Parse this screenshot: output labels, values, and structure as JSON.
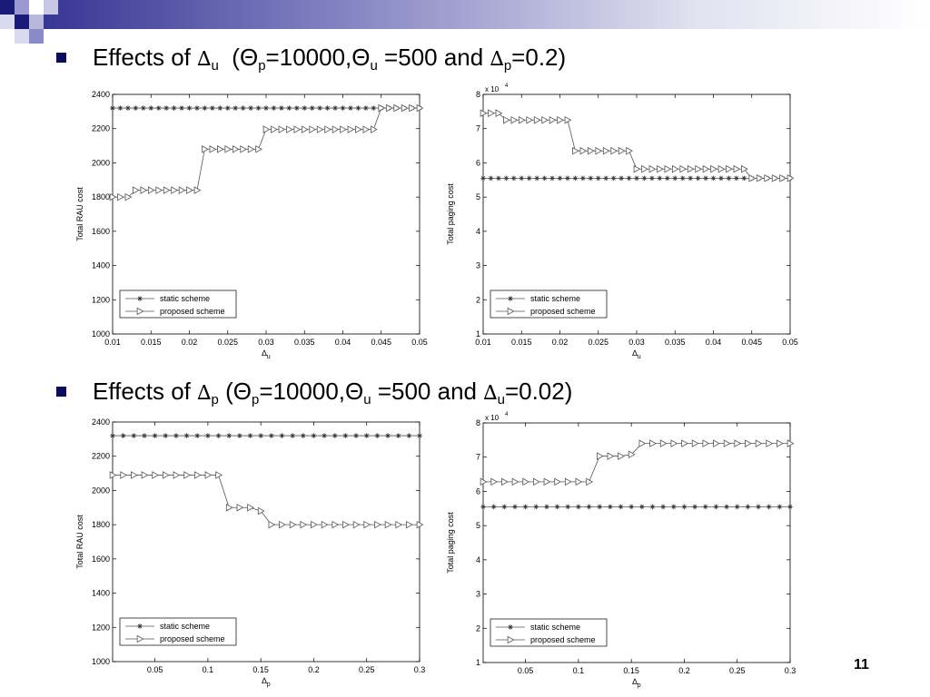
{
  "slide": {
    "heading1": {
      "prefix": "Effects of ",
      "symbol": "∆",
      "sub": "u",
      "rest_a": "  (Θ",
      "sub_p": "p",
      "rest_b": "=10000,Θ",
      "sub_u": "u",
      "rest_c": " =500 and ",
      "symbol2": "∆",
      "sub2": "p",
      "rest_d": "=0.2)"
    },
    "heading2": {
      "prefix": "Effects of ",
      "symbol": "∆",
      "sub": "p",
      "rest_a": " (Θ",
      "sub_p": "p",
      "rest_b": "=10000,Θ",
      "sub_u": "u",
      "rest_c": " =500 and ",
      "symbol2": "∆",
      "sub2": "u",
      "rest_d": "=0.02)"
    },
    "page_number": "11",
    "accent_color": "#0a0a60"
  },
  "chart_data": [
    {
      "type": "line",
      "ylabel": "Total RAU cost",
      "xlabel": "∆u",
      "xlim": [
        0.01,
        0.05
      ],
      "ylim": [
        1000,
        2400
      ],
      "xticks": [
        0.01,
        0.015,
        0.02,
        0.025,
        0.03,
        0.035,
        0.04,
        0.045,
        0.05
      ],
      "xtick_labels": [
        "0.01",
        "0.015",
        "0.02",
        "0.025",
        "0.03",
        "0.035",
        "0.04",
        "0.045",
        "0.05"
      ],
      "yticks": [
        1000,
        1200,
        1400,
        1600,
        1800,
        2000,
        2200,
        2400
      ],
      "ytick_labels": [
        "1000",
        "1200",
        "1400",
        "1600",
        "1800",
        "2000",
        "2200",
        "2400"
      ],
      "y_exponent_label": "",
      "legend": "bottom-left",
      "grid": false,
      "series": [
        {
          "name": "static scheme",
          "marker": "star",
          "x": [
            0.01,
            0.011,
            0.012,
            0.013,
            0.014,
            0.015,
            0.016,
            0.017,
            0.018,
            0.019,
            0.02,
            0.021,
            0.022,
            0.023,
            0.024,
            0.025,
            0.026,
            0.027,
            0.028,
            0.029,
            0.03,
            0.031,
            0.032,
            0.033,
            0.034,
            0.035,
            0.036,
            0.037,
            0.038,
            0.039,
            0.04,
            0.041,
            0.042,
            0.043,
            0.044,
            0.045,
            0.046,
            0.047,
            0.048,
            0.049,
            0.05
          ],
          "y": [
            2320,
            2320,
            2320,
            2320,
            2320,
            2320,
            2320,
            2320,
            2320,
            2320,
            2320,
            2320,
            2320,
            2320,
            2320,
            2320,
            2320,
            2320,
            2320,
            2320,
            2320,
            2320,
            2320,
            2320,
            2320,
            2320,
            2320,
            2320,
            2320,
            2320,
            2320,
            2320,
            2320,
            2320,
            2320,
            2320,
            2320,
            2320,
            2320,
            2320,
            2320
          ]
        },
        {
          "name": "proposed scheme",
          "marker": "triangle",
          "x": [
            0.01,
            0.011,
            0.012,
            0.013,
            0.014,
            0.015,
            0.016,
            0.017,
            0.018,
            0.019,
            0.02,
            0.021,
            0.022,
            0.023,
            0.024,
            0.025,
            0.026,
            0.027,
            0.028,
            0.029,
            0.03,
            0.031,
            0.032,
            0.033,
            0.034,
            0.035,
            0.036,
            0.037,
            0.038,
            0.039,
            0.04,
            0.041,
            0.042,
            0.043,
            0.044,
            0.045,
            0.046,
            0.047,
            0.048,
            0.049,
            0.05
          ],
          "y": [
            1800,
            1800,
            1800,
            1840,
            1840,
            1840,
            1840,
            1840,
            1840,
            1840,
            1840,
            1840,
            2080,
            2080,
            2080,
            2080,
            2080,
            2080,
            2080,
            2080,
            2195,
            2195,
            2195,
            2195,
            2195,
            2195,
            2195,
            2195,
            2195,
            2195,
            2195,
            2195,
            2195,
            2195,
            2195,
            2320,
            2320,
            2320,
            2320,
            2320,
            2320
          ]
        }
      ]
    },
    {
      "type": "line",
      "ylabel": "Total paging cost",
      "xlabel": "∆u",
      "xlim": [
        0.01,
        0.05
      ],
      "ylim": [
        1,
        8
      ],
      "xticks": [
        0.01,
        0.015,
        0.02,
        0.025,
        0.03,
        0.035,
        0.04,
        0.045,
        0.05
      ],
      "xtick_labels": [
        "0.01",
        "0.015",
        "0.02",
        "0.025",
        "0.03",
        "0.035",
        "0.04",
        "0.045",
        "0.05"
      ],
      "yticks": [
        1,
        2,
        3,
        4,
        5,
        6,
        7,
        8
      ],
      "ytick_labels": [
        "1",
        "2",
        "3",
        "4",
        "5",
        "6",
        "7",
        "8"
      ],
      "y_exponent_label": "x 10",
      "y_exponent_power": "4",
      "legend": "bottom-left",
      "grid": false,
      "series": [
        {
          "name": "static scheme",
          "marker": "star",
          "x": [
            0.01,
            0.011,
            0.012,
            0.013,
            0.014,
            0.015,
            0.016,
            0.017,
            0.018,
            0.019,
            0.02,
            0.021,
            0.022,
            0.023,
            0.024,
            0.025,
            0.026,
            0.027,
            0.028,
            0.029,
            0.03,
            0.031,
            0.032,
            0.033,
            0.034,
            0.035,
            0.036,
            0.037,
            0.038,
            0.039,
            0.04,
            0.041,
            0.042,
            0.043,
            0.044,
            0.045,
            0.046,
            0.047,
            0.048,
            0.049,
            0.05
          ],
          "y": [
            5.55,
            5.55,
            5.55,
            5.55,
            5.55,
            5.55,
            5.55,
            5.55,
            5.55,
            5.55,
            5.55,
            5.55,
            5.55,
            5.55,
            5.55,
            5.55,
            5.55,
            5.55,
            5.55,
            5.55,
            5.55,
            5.55,
            5.55,
            5.55,
            5.55,
            5.55,
            5.55,
            5.55,
            5.55,
            5.55,
            5.55,
            5.55,
            5.55,
            5.55,
            5.55,
            5.55,
            5.55,
            5.55,
            5.55,
            5.55,
            5.55
          ]
        },
        {
          "name": "proposed scheme",
          "marker": "triangle",
          "x": [
            0.01,
            0.011,
            0.012,
            0.013,
            0.014,
            0.015,
            0.016,
            0.017,
            0.018,
            0.019,
            0.02,
            0.021,
            0.022,
            0.023,
            0.024,
            0.025,
            0.026,
            0.027,
            0.028,
            0.029,
            0.03,
            0.031,
            0.032,
            0.033,
            0.034,
            0.035,
            0.036,
            0.037,
            0.038,
            0.039,
            0.04,
            0.041,
            0.042,
            0.043,
            0.044,
            0.045,
            0.046,
            0.047,
            0.048,
            0.049,
            0.05
          ],
          "y": [
            7.45,
            7.45,
            7.45,
            7.25,
            7.25,
            7.25,
            7.25,
            7.25,
            7.25,
            7.25,
            7.25,
            7.25,
            6.35,
            6.35,
            6.35,
            6.35,
            6.35,
            6.35,
            6.35,
            6.35,
            5.82,
            5.82,
            5.82,
            5.82,
            5.82,
            5.82,
            5.82,
            5.82,
            5.82,
            5.82,
            5.82,
            5.82,
            5.82,
            5.82,
            5.82,
            5.55,
            5.55,
            5.55,
            5.55,
            5.55,
            5.55
          ]
        }
      ]
    },
    {
      "type": "line",
      "ylabel": "Total RAU cost",
      "xlabel": "∆p",
      "xlim": [
        0.01,
        0.3
      ],
      "ylim": [
        1000,
        2400
      ],
      "xticks": [
        0.05,
        0.1,
        0.15,
        0.2,
        0.25,
        0.3
      ],
      "xtick_labels": [
        "0.05",
        "0.1",
        "0.15",
        "0.2",
        "0.25",
        "0.3"
      ],
      "yticks": [
        1000,
        1200,
        1400,
        1600,
        1800,
        2000,
        2200,
        2400
      ],
      "ytick_labels": [
        "1000",
        "1200",
        "1400",
        "1600",
        "1800",
        "2000",
        "2200",
        "2400"
      ],
      "y_exponent_label": "",
      "legend": "bottom-left",
      "grid": false,
      "series": [
        {
          "name": "static scheme",
          "marker": "star",
          "x": [
            0.01,
            0.02,
            0.03,
            0.04,
            0.05,
            0.06,
            0.07,
            0.08,
            0.09,
            0.1,
            0.11,
            0.12,
            0.13,
            0.14,
            0.15,
            0.16,
            0.17,
            0.18,
            0.19,
            0.2,
            0.21,
            0.22,
            0.23,
            0.24,
            0.25,
            0.26,
            0.27,
            0.28,
            0.29,
            0.3
          ],
          "y": [
            2320,
            2320,
            2320,
            2320,
            2320,
            2320,
            2320,
            2320,
            2320,
            2320,
            2320,
            2320,
            2320,
            2320,
            2320,
            2320,
            2320,
            2320,
            2320,
            2320,
            2320,
            2320,
            2320,
            2320,
            2320,
            2320,
            2320,
            2320,
            2320,
            2320
          ]
        },
        {
          "name": "proposed scheme",
          "marker": "triangle",
          "x": [
            0.01,
            0.02,
            0.03,
            0.04,
            0.05,
            0.06,
            0.07,
            0.08,
            0.09,
            0.1,
            0.11,
            0.12,
            0.13,
            0.14,
            0.15,
            0.16,
            0.17,
            0.18,
            0.19,
            0.2,
            0.21,
            0.22,
            0.23,
            0.24,
            0.25,
            0.26,
            0.27,
            0.28,
            0.29,
            0.3
          ],
          "y": [
            2090,
            2090,
            2090,
            2090,
            2090,
            2090,
            2090,
            2090,
            2090,
            2090,
            2090,
            1900,
            1900,
            1900,
            1880,
            1800,
            1800,
            1800,
            1800,
            1800,
            1800,
            1800,
            1800,
            1800,
            1800,
            1800,
            1800,
            1800,
            1800,
            1800
          ]
        }
      ]
    },
    {
      "type": "line",
      "ylabel": "Total paging cost",
      "xlabel": "∆p",
      "xlim": [
        0.01,
        0.3
      ],
      "ylim": [
        1,
        8
      ],
      "xticks": [
        0.05,
        0.1,
        0.15,
        0.2,
        0.25,
        0.3
      ],
      "xtick_labels": [
        "0.05",
        "0.1",
        "0.15",
        "0.2",
        "0.25",
        "0.3"
      ],
      "yticks": [
        1,
        2,
        3,
        4,
        5,
        6,
        7,
        8
      ],
      "ytick_labels": [
        "1",
        "2",
        "3",
        "4",
        "5",
        "6",
        "7",
        "8"
      ],
      "y_exponent_label": "x 10",
      "y_exponent_power": "4",
      "legend": "bottom-left",
      "grid": false,
      "series": [
        {
          "name": "static scheme",
          "marker": "star",
          "x": [
            0.01,
            0.02,
            0.03,
            0.04,
            0.05,
            0.06,
            0.07,
            0.08,
            0.09,
            0.1,
            0.11,
            0.12,
            0.13,
            0.14,
            0.15,
            0.16,
            0.17,
            0.18,
            0.19,
            0.2,
            0.21,
            0.22,
            0.23,
            0.24,
            0.25,
            0.26,
            0.27,
            0.28,
            0.29,
            0.3
          ],
          "y": [
            5.55,
            5.55,
            5.55,
            5.55,
            5.55,
            5.55,
            5.55,
            5.55,
            5.55,
            5.55,
            5.55,
            5.55,
            5.55,
            5.55,
            5.55,
            5.55,
            5.55,
            5.55,
            5.55,
            5.55,
            5.55,
            5.55,
            5.55,
            5.55,
            5.55,
            5.55,
            5.55,
            5.55,
            5.55,
            5.55
          ]
        },
        {
          "name": "proposed scheme",
          "marker": "triangle",
          "x": [
            0.01,
            0.02,
            0.03,
            0.04,
            0.05,
            0.06,
            0.07,
            0.08,
            0.09,
            0.1,
            0.11,
            0.12,
            0.13,
            0.14,
            0.15,
            0.16,
            0.17,
            0.18,
            0.19,
            0.2,
            0.21,
            0.22,
            0.23,
            0.24,
            0.25,
            0.26,
            0.27,
            0.28,
            0.29,
            0.3
          ],
          "y": [
            6.28,
            6.28,
            6.28,
            6.28,
            6.28,
            6.28,
            6.28,
            6.28,
            6.28,
            6.28,
            6.28,
            7.03,
            7.03,
            7.03,
            7.08,
            7.4,
            7.4,
            7.4,
            7.4,
            7.4,
            7.4,
            7.4,
            7.4,
            7.4,
            7.4,
            7.4,
            7.4,
            7.4,
            7.4,
            7.4
          ]
        }
      ]
    }
  ]
}
